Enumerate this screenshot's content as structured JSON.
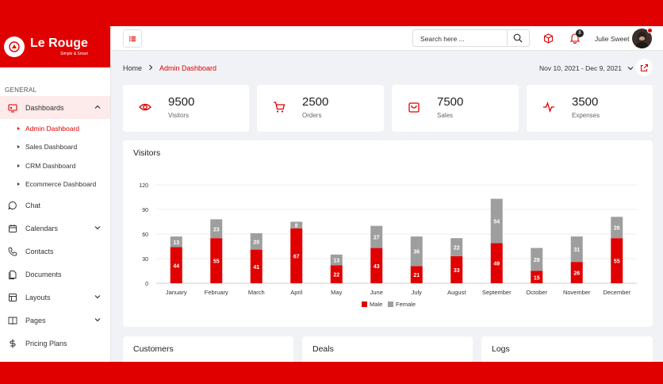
{
  "brand": {
    "name": "Le Rouge",
    "tagline": "Simple & Smart"
  },
  "sidebar": {
    "section": "GENERAL",
    "items": [
      {
        "label": "Dashboards",
        "icon": "dashboard-icon",
        "expandable": true
      },
      {
        "label": "Chat",
        "icon": "chat-icon"
      },
      {
        "label": "Calendars",
        "icon": "calendar-icon",
        "expandable": true
      },
      {
        "label": "Contacts",
        "icon": "phone-icon"
      },
      {
        "label": "Documents",
        "icon": "documents-icon"
      },
      {
        "label": "Layouts",
        "icon": "layouts-icon",
        "expandable": true
      },
      {
        "label": "Pages",
        "icon": "book-icon",
        "expandable": true
      },
      {
        "label": "Pricing Plans",
        "icon": "dollar-icon"
      }
    ],
    "sub_items": [
      "Admin Dashboard",
      "Sales Dashboard",
      "CRM Dashboard",
      "Ecommerce Dashboard"
    ]
  },
  "topbar": {
    "search_placeholder": "Search here ...",
    "notification_count": "8",
    "user_name": "Julie Sweet"
  },
  "breadcrumb": {
    "home": "Home",
    "current": "Admin Dashboard"
  },
  "date_range": "Nov 10, 2021 - Dec 9, 2021",
  "stats": [
    {
      "value": "9500",
      "label": "Visitors",
      "icon": "eye-icon"
    },
    {
      "value": "2500",
      "label": "Orders",
      "icon": "cart-icon"
    },
    {
      "value": "7500",
      "label": "Sales",
      "icon": "bag-icon"
    },
    {
      "value": "3500",
      "label": "Expenses",
      "icon": "pulse-icon"
    }
  ],
  "visitors_card": {
    "title": "Visitors"
  },
  "chart_data": {
    "type": "bar",
    "stacked": true,
    "categories": [
      "January",
      "February",
      "March",
      "April",
      "May",
      "June",
      "July",
      "August",
      "September",
      "October",
      "November",
      "December"
    ],
    "series": [
      {
        "name": "Male",
        "color": "#e00000",
        "values": [
          44,
          55,
          41,
          67,
          22,
          43,
          21,
          33,
          49,
          15,
          26,
          55
        ]
      },
      {
        "name": "Female",
        "color": "#9e9e9e",
        "values": [
          13,
          23,
          20,
          8,
          13,
          27,
          36,
          22,
          54,
          28,
          31,
          26
        ]
      }
    ],
    "yticks": [
      0,
      30,
      60,
      90,
      120
    ],
    "ylim": [
      0,
      120
    ],
    "legend": "bottom-center",
    "grid": true
  },
  "bottom_cards": [
    {
      "title": "Customers"
    },
    {
      "title": "Deals"
    },
    {
      "title": "Logs"
    }
  ],
  "colors": {
    "accent": "#e00000",
    "female": "#9e9e9e"
  }
}
